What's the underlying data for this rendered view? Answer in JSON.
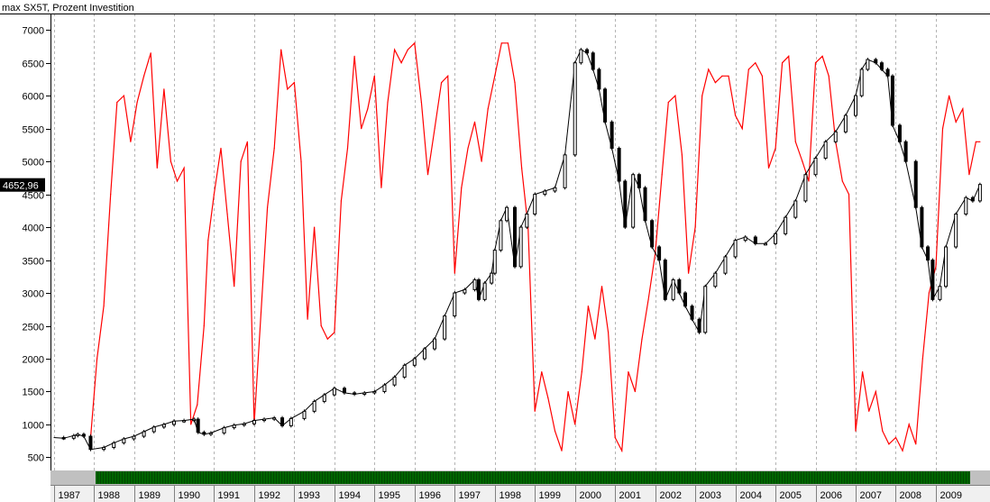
{
  "window": {
    "title": "max  SX5T,  Prozent Investition"
  },
  "chart_data": {
    "type": "line",
    "title": "max  SX5T,  Prozent Investition",
    "xlabel": "",
    "ylabel": "",
    "ylim": [
      300,
      7250
    ],
    "x_range": [
      1986.92,
      2010.35
    ],
    "y_ticks": [
      500,
      1000,
      1500,
      2000,
      2500,
      3000,
      3500,
      4000,
      4500,
      5000,
      5500,
      6000,
      6500,
      7000
    ],
    "year_labels": [
      "1987",
      "1988",
      "1989",
      "1990",
      "1991",
      "1992",
      "1993",
      "1994",
      "1995",
      "1996",
      "1997",
      "1998",
      "1999",
      "2000",
      "2001",
      "2002",
      "2003",
      "2004",
      "2005",
      "2006",
      "2007",
      "2008",
      "2009"
    ],
    "grid": "vertical dashed at each year",
    "last_value_label": "4652,96",
    "colors": {
      "background": "#ffffff",
      "price": "#000000",
      "investment": "#ff0000",
      "signal_bar": "#006400",
      "axis_panel": "#c0c0c0"
    },
    "series": [
      {
        "key": "price",
        "style": "candlestick",
        "x": [
          1987.0,
          1987.25,
          1987.5,
          1987.6,
          1987.75,
          1987.92,
          1988.25,
          1988.5,
          1988.75,
          1989.0,
          1989.25,
          1989.5,
          1989.75,
          1990.0,
          1990.25,
          1990.5,
          1990.6,
          1990.75,
          1990.92,
          1991.25,
          1991.5,
          1991.75,
          1992.0,
          1992.25,
          1992.5,
          1992.7,
          1992.92,
          1993.25,
          1993.5,
          1993.75,
          1994.0,
          1994.25,
          1994.5,
          1994.75,
          1995.0,
          1995.25,
          1995.5,
          1995.75,
          1996.0,
          1996.25,
          1996.5,
          1996.75,
          1997.0,
          1997.25,
          1997.5,
          1997.6,
          1997.75,
          1997.92,
          1998.0,
          1998.15,
          1998.3,
          1998.5,
          1998.65,
          1998.8,
          1999.0,
          1999.25,
          1999.5,
          1999.75,
          2000.0,
          2000.15,
          2000.3,
          2000.45,
          2000.6,
          2000.75,
          2000.92,
          2001.1,
          2001.25,
          2001.45,
          2001.6,
          2001.75,
          2001.92,
          2002.1,
          2002.25,
          2002.45,
          2002.6,
          2002.75,
          2002.92,
          2003.1,
          2003.25,
          2003.5,
          2003.75,
          2004.0,
          2004.25,
          2004.5,
          2004.75,
          2005.0,
          2005.25,
          2005.5,
          2005.75,
          2006.0,
          2006.25,
          2006.5,
          2006.75,
          2007.0,
          2007.15,
          2007.3,
          2007.5,
          2007.65,
          2007.8,
          2007.92,
          2008.1,
          2008.25,
          2008.5,
          2008.65,
          2008.8,
          2008.92,
          2009.1,
          2009.25,
          2009.5,
          2009.75,
          2009.92,
          2010.1
        ],
        "values": [
          800,
          790,
          830,
          850,
          820,
          620,
          650,
          720,
          780,
          820,
          890,
          960,
          1000,
          1050,
          1060,
          1080,
          880,
          850,
          870,
          950,
          990,
          1010,
          1060,
          1080,
          1100,
          980,
          1090,
          1200,
          1350,
          1450,
          1550,
          1480,
          1460,
          1480,
          1500,
          1600,
          1720,
          1900,
          2000,
          2150,
          2300,
          2650,
          3000,
          3050,
          3200,
          2900,
          3150,
          3300,
          3650,
          4100,
          4300,
          3400,
          4000,
          4200,
          4500,
          4550,
          4600,
          5100,
          6500,
          6700,
          6650,
          6400,
          6100,
          5600,
          5200,
          4700,
          4000,
          4800,
          4600,
          4100,
          3700,
          3500,
          2900,
          3200,
          3000,
          2800,
          2600,
          2400,
          3100,
          3300,
          3550,
          3800,
          3850,
          3750,
          3750,
          3900,
          4150,
          4400,
          4800,
          5050,
          5300,
          5450,
          5700,
          6000,
          6400,
          6550,
          6500,
          6400,
          6300,
          5550,
          5300,
          5000,
          4300,
          3700,
          3500,
          2900,
          3100,
          3700,
          4200,
          4450,
          4400,
          4650
        ]
      },
      {
        "key": "investment",
        "style": "line",
        "x": [
          1987.92,
          1988.08,
          1988.25,
          1988.42,
          1988.58,
          1988.75,
          1988.92,
          1989.08,
          1989.25,
          1989.42,
          1989.58,
          1989.75,
          1989.92,
          1990.08,
          1990.25,
          1990.42,
          1990.58,
          1990.75,
          1990.85,
          1991.0,
          1991.17,
          1991.33,
          1991.5,
          1991.67,
          1991.83,
          1992.0,
          1992.17,
          1992.33,
          1992.5,
          1992.67,
          1992.83,
          1993.0,
          1993.17,
          1993.33,
          1993.5,
          1993.67,
          1993.83,
          1994.0,
          1994.17,
          1994.33,
          1994.5,
          1994.67,
          1994.83,
          1995.0,
          1995.17,
          1995.33,
          1995.5,
          1995.67,
          1995.83,
          1996.0,
          1996.17,
          1996.33,
          1996.5,
          1996.67,
          1996.83,
          1997.0,
          1997.17,
          1997.33,
          1997.5,
          1997.67,
          1997.83,
          1998.0,
          1998.17,
          1998.33,
          1998.5,
          1998.67,
          1998.83,
          1999.0,
          1999.17,
          1999.33,
          1999.5,
          1999.67,
          1999.83,
          2000.0,
          2000.17,
          2000.33,
          2000.5,
          2000.67,
          2000.83,
          2001.0,
          2001.17,
          2001.33,
          2001.5,
          2001.67,
          2001.83,
          2002.0,
          2002.17,
          2002.33,
          2002.5,
          2002.67,
          2002.83,
          2003.0,
          2003.17,
          2003.33,
          2003.5,
          2003.67,
          2003.83,
          2004.0,
          2004.17,
          2004.33,
          2004.5,
          2004.67,
          2004.83,
          2005.0,
          2005.17,
          2005.33,
          2005.5,
          2005.67,
          2005.83,
          2006.0,
          2006.17,
          2006.33,
          2006.5,
          2006.67,
          2006.83,
          2007.0,
          2007.17,
          2007.33,
          2007.5,
          2007.67,
          2007.83,
          2008.0,
          2008.17,
          2008.33,
          2008.5,
          2008.67,
          2008.83,
          2009.0,
          2009.17,
          2009.33,
          2009.5,
          2009.67,
          2009.83,
          2010.0,
          2010.1
        ],
        "values": [
          800,
          2000,
          2800,
          4500,
          5900,
          6000,
          5300,
          5900,
          6300,
          6650,
          4900,
          6100,
          5000,
          4700,
          4900,
          1000,
          1300,
          2500,
          3800,
          4500,
          5200,
          4200,
          3100,
          5000,
          5300,
          1000,
          2700,
          4300,
          5200,
          6700,
          6100,
          6200,
          5000,
          2600,
          4000,
          2500,
          2300,
          2400,
          4400,
          5200,
          6600,
          5500,
          5800,
          6300,
          4600,
          5900,
          6700,
          6500,
          6700,
          6800,
          5900,
          4800,
          5500,
          6200,
          6300,
          3300,
          4600,
          5200,
          5600,
          5000,
          5800,
          6300,
          6800,
          6800,
          6200,
          4900,
          4000,
          1200,
          1800,
          1400,
          900,
          600,
          1500,
          1000,
          1800,
          2800,
          2300,
          3100,
          2400,
          800,
          600,
          1800,
          1500,
          2300,
          2900,
          3600,
          4800,
          5900,
          6000,
          5100,
          3300,
          4000,
          6000,
          6400,
          6200,
          6300,
          6300,
          5700,
          5500,
          6400,
          6500,
          6300,
          4900,
          5200,
          6500,
          6600,
          5300,
          5000,
          4700,
          6500,
          6600,
          6300,
          5300,
          4700,
          4500,
          900,
          1800,
          1200,
          1500,
          900,
          700,
          800,
          600,
          1000,
          700,
          2000,
          3000,
          3400,
          5500,
          6000,
          5600,
          5800,
          4800,
          5300,
          5300
        ]
      }
    ]
  }
}
